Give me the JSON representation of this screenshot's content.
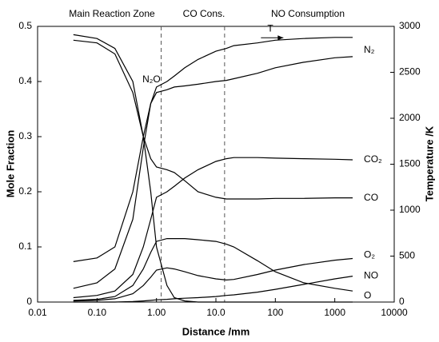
{
  "chart_data": {
    "type": "line",
    "annotations": [
      "Main Reaction Zone",
      "CO Cons.",
      "NO Consumption"
    ],
    "vlines": [
      1.2,
      14
    ],
    "x_label": "Distance /mm",
    "y_label": "Mole Fraction",
    "y2_label": "Temperature /K",
    "log_x": true,
    "xlim": [
      0.01,
      10000
    ],
    "xticks": [
      0.01,
      {
        "value": 0.1,
        "label": "0.10"
      },
      {
        "value": 1,
        "label": "1.00"
      },
      {
        "value": 10,
        "label": "10.0"
      },
      100,
      1000,
      10000
    ],
    "ylim": [
      0,
      0.5
    ],
    "yticks": [
      0,
      0.1,
      0.2,
      0.3,
      0.4,
      0.5
    ],
    "y2lim": [
      0,
      3000
    ],
    "y2ticks": [
      0,
      500,
      1000,
      1500,
      2000,
      2500,
      3000
    ],
    "x": [
      0.04,
      0.1,
      0.2,
      0.4,
      0.6,
      0.8,
      1,
      1.5,
      2,
      3,
      5,
      10,
      15,
      20,
      50,
      100,
      300,
      1000,
      2000
    ],
    "series": [
      {
        "name": "N₂O",
        "color": "#000000",
        "values": [
          0.485,
          0.478,
          0.46,
          0.4,
          0.3,
          0.2,
          0.1,
          0.03,
          0.008,
          0.002,
          0,
          0,
          0,
          0,
          0,
          0,
          0,
          0,
          0
        ]
      },
      {
        "name": "T",
        "color": "#000000",
        "axis": "y2",
        "values": [
          440,
          480,
          600,
          1200,
          1800,
          2160,
          2340,
          2400,
          2460,
          2550,
          2640,
          2730,
          2760,
          2790,
          2820,
          2850,
          2868,
          2880,
          2880
        ]
      },
      {
        "name": "N₂",
        "color": "#000000",
        "values": [
          0.025,
          0.035,
          0.06,
          0.15,
          0.28,
          0.36,
          0.38,
          0.385,
          0.39,
          0.392,
          0.395,
          0.4,
          0.402,
          0.405,
          0.415,
          0.425,
          0.435,
          0.443,
          0.445
        ]
      },
      {
        "name": "CO₂",
        "color": "#000000",
        "values": [
          0.008,
          0.012,
          0.02,
          0.05,
          0.1,
          0.15,
          0.19,
          0.2,
          0.21,
          0.225,
          0.24,
          0.255,
          0.26,
          0.262,
          0.262,
          0.261,
          0.26,
          0.259,
          0.258
        ]
      },
      {
        "name": "CO",
        "color": "#000000",
        "values": [
          0.475,
          0.47,
          0.45,
          0.38,
          0.3,
          0.26,
          0.245,
          0.24,
          0.235,
          0.22,
          0.2,
          0.19,
          0.187,
          0.187,
          0.187,
          0.188,
          0.188,
          0.189,
          0.189
        ]
      },
      {
        "name": "O₂",
        "color": "#000000",
        "values": [
          0.002,
          0.003,
          0.006,
          0.015,
          0.03,
          0.045,
          0.058,
          0.062,
          0.06,
          0.055,
          0.048,
          0.042,
          0.04,
          0.041,
          0.05,
          0.058,
          0.068,
          0.076,
          0.079
        ]
      },
      {
        "name": "NO",
        "color": "#000000",
        "values": [
          0,
          0,
          0,
          0.001,
          0.002,
          0.003,
          0.004,
          0.005,
          0.006,
          0.007,
          0.008,
          0.01,
          0.012,
          0.013,
          0.018,
          0.023,
          0.032,
          0.042,
          0.047
        ]
      },
      {
        "name": "O",
        "color": "#000000",
        "values": [
          0.003,
          0.005,
          0.01,
          0.03,
          0.06,
          0.09,
          0.11,
          0.115,
          0.115,
          0.115,
          0.113,
          0.11,
          0.105,
          0.1,
          0.075,
          0.055,
          0.035,
          0.025,
          0.02
        ]
      }
    ]
  }
}
